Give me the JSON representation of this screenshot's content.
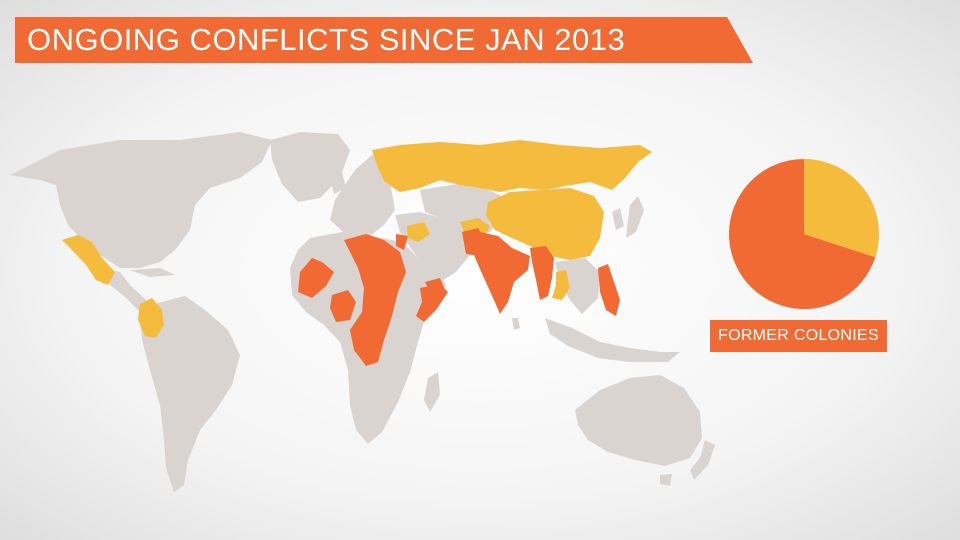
{
  "title": "ONGOING CONFLICTS SINCE JAN 2013",
  "colors": {
    "land": "#d9d4cf",
    "conflict_former_colony": "#f26a33",
    "conflict_other": "#f5bb3c",
    "banner": "#f26a33"
  },
  "pie": {
    "label": "FORMER COLONIES",
    "segments": [
      {
        "value": 70,
        "color": "#f26a33"
      },
      {
        "value": 30,
        "color": "#f5bb3c"
      }
    ]
  },
  "chart_data": {
    "type": "pie",
    "title": "",
    "categories": [
      "FORMER COLONIES",
      ""
    ],
    "values": [
      70,
      30
    ]
  }
}
